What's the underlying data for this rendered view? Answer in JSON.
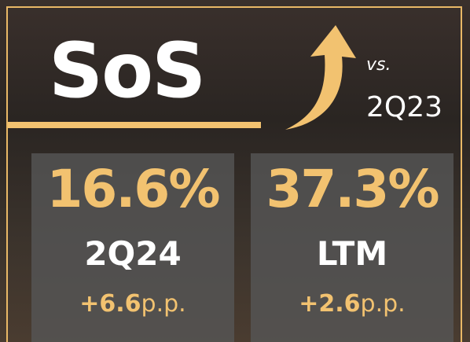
{
  "title": "SoS",
  "comparison": {
    "prefix": "vs.",
    "period": "2Q23"
  },
  "cards": [
    {
      "value": "16.6%",
      "period": "2Q24",
      "change": "+6.6",
      "unit": "p.p."
    },
    {
      "value": "37.3%",
      "period": "LTM",
      "change": "+2.6",
      "unit": "p.p."
    }
  ]
}
